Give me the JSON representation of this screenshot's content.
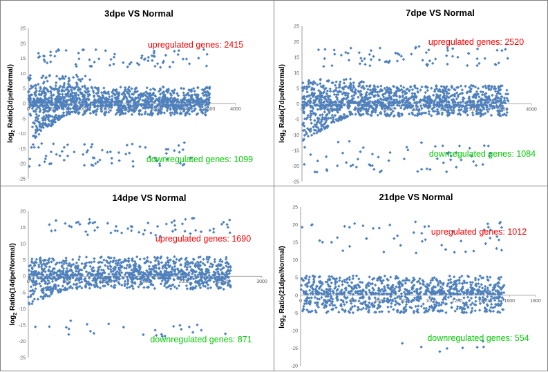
{
  "chart_data": [
    {
      "type": "scatter",
      "title": "3dpe VS Normal",
      "ylabel_pre": "log",
      "ylabel_sub": "2",
      "ylabel_post": " Ratio(3dpe/Normal)",
      "xlim": [
        0,
        4000
      ],
      "xticks": [
        "0",
        "500",
        "1000",
        "1500",
        "2000",
        "2500",
        "3000",
        "3500",
        "4000"
      ],
      "ylim": [
        -25,
        25
      ],
      "yticks": [
        "-25",
        "-20",
        "-15",
        "-10",
        "-5",
        "0",
        "5",
        "10",
        "15",
        "20",
        "25"
      ],
      "up_label": "upregulated genes: 2415",
      "down_label": "downregulated genes: 1099",
      "series_color": "#4f81bd",
      "clusters": [
        {
          "n": 70,
          "x": [
            100,
            3450
          ],
          "y": [
            12,
            18
          ]
        },
        {
          "n": 700,
          "x": [
            0,
            3500
          ],
          "y": [
            0.3,
            5.5
          ]
        },
        {
          "n": 60,
          "x": [
            0,
            1200
          ],
          "y": [
            5,
            9.5
          ]
        },
        {
          "n": 500,
          "x": [
            0,
            3500
          ],
          "y": [
            -4,
            -0.3
          ]
        },
        {
          "n": 100,
          "x": [
            20,
            700
          ],
          "y": [
            -13,
            -4
          ]
        },
        {
          "n": 70,
          "x": [
            0,
            3200
          ],
          "y": [
            -21,
            -13
          ]
        }
      ]
    },
    {
      "type": "scatter",
      "title": "7dpe VS Normal",
      "ylabel_pre": "log",
      "ylabel_sub": "2",
      "ylabel_post": " Ratio(7dpe/Normal)",
      "xlim": [
        0,
        4000
      ],
      "xticks": [
        "0",
        "500",
        "1000",
        "1500",
        "2000",
        "2500",
        "3000",
        "3500",
        "4000"
      ],
      "ylim": [
        -25,
        25
      ],
      "yticks": [
        "-25",
        "-20",
        "-15",
        "-10",
        "-5",
        "0",
        "5",
        "10",
        "15",
        "20",
        "25"
      ],
      "up_label": "upregulated genes: 2520",
      "down_label": "downregulated genes: 1084",
      "series_color": "#4f81bd",
      "clusters": [
        {
          "n": 70,
          "x": [
            250,
            3600
          ],
          "y": [
            12,
            18.5
          ]
        },
        {
          "n": 700,
          "x": [
            0,
            3600
          ],
          "y": [
            0.3,
            6
          ]
        },
        {
          "n": 50,
          "x": [
            0,
            1100
          ],
          "y": [
            5,
            8
          ]
        },
        {
          "n": 500,
          "x": [
            0,
            3600
          ],
          "y": [
            -4,
            -0.3
          ]
        },
        {
          "n": 110,
          "x": [
            10,
            800
          ],
          "y": [
            -12,
            -4
          ]
        },
        {
          "n": 60,
          "x": [
            0,
            3300
          ],
          "y": [
            -22,
            -12
          ]
        }
      ]
    },
    {
      "type": "scatter",
      "title": "14dpe VS Normal",
      "ylabel_pre": "log",
      "ylabel_sub": "2",
      "ylabel_post": " Ratio(14dpe/Normal)",
      "xlim": [
        0,
        3000
      ],
      "xticks": [
        "0",
        "500",
        "1000",
        "1500",
        "2000",
        "2500",
        "3000"
      ],
      "ylim": [
        -25,
        20
      ],
      "yticks": [
        "-25",
        "-20",
        "-15",
        "-10",
        "-5",
        "0",
        "5",
        "10",
        "15",
        "20"
      ],
      "up_label": "upregulated genes: 1690",
      "down_label": "downregulated genes: 871",
      "series_color": "#4f81bd",
      "clusters": [
        {
          "n": 60,
          "x": [
            100,
            2600
          ],
          "y": [
            12,
            18
          ]
        },
        {
          "n": 650,
          "x": [
            0,
            2600
          ],
          "y": [
            0.3,
            6
          ]
        },
        {
          "n": 450,
          "x": [
            0,
            2600
          ],
          "y": [
            -4,
            -0.3
          ]
        },
        {
          "n": 60,
          "x": [
            0,
            500
          ],
          "y": [
            -9,
            -4
          ]
        },
        {
          "n": 25,
          "x": [
            0,
            2600
          ],
          "y": [
            -19,
            -13
          ]
        }
      ]
    },
    {
      "type": "scatter",
      "title": "21dpe VS Normal",
      "ylabel_pre": "log",
      "ylabel_sub": "2",
      "ylabel_post": " Ratio(21dpe/Normal)",
      "xlim": [
        0,
        1800
      ],
      "xticks": [
        "0",
        "200",
        "400",
        "600",
        "800",
        "1000",
        "1200",
        "1400",
        "1600",
        "1800"
      ],
      "ylim": [
        -20,
        25
      ],
      "yticks": [
        "-20",
        "-15",
        "-10",
        "-5",
        "0",
        "5",
        "10",
        "15",
        "20",
        "25"
      ],
      "up_label": "upregulated genes: 1012",
      "down_label": "downregulated genes: 554",
      "series_color": "#4f81bd",
      "clusters": [
        {
          "n": 50,
          "x": [
            0,
            1560
          ],
          "y": [
            12,
            21
          ]
        },
        {
          "n": 600,
          "x": [
            0,
            1560
          ],
          "y": [
            0.3,
            5.5
          ]
        },
        {
          "n": 380,
          "x": [
            0,
            1560
          ],
          "y": [
            -5,
            -0.3
          ]
        },
        {
          "n": 8,
          "x": [
            400,
            1500
          ],
          "y": [
            -16.5,
            -13
          ]
        }
      ]
    }
  ]
}
